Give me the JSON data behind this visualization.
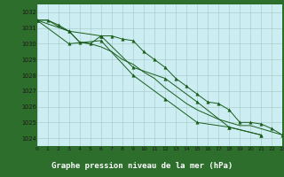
{
  "title": "Graphe pression niveau de la mer (hPa)",
  "bg_color": "#cceef2",
  "footer_color": "#2d6e2d",
  "footer_text_color": "#ffffff",
  "line_color": "#1a5c1a",
  "xlim": [
    0,
    23
  ],
  "ylim": [
    1023.5,
    1032.5
  ],
  "yticks": [
    1024,
    1025,
    1026,
    1027,
    1028,
    1029,
    1030,
    1031,
    1032
  ],
  "xtick_labels": [
    "0",
    "1",
    "2",
    "3",
    "4",
    "5",
    "6",
    "7",
    "8",
    "9",
    "10",
    "11",
    "12",
    "13",
    "14",
    "15",
    "16",
    "17",
    "18",
    "19",
    "20",
    "21",
    "22",
    "23"
  ],
  "series": [
    {
      "x": [
        0,
        1,
        2,
        3,
        4,
        5,
        6,
        7,
        8,
        9,
        10,
        11,
        12,
        13,
        14,
        15,
        16,
        17,
        18,
        19,
        20,
        21,
        22,
        23
      ],
      "y": [
        1031.5,
        1031.5,
        1031.2,
        1030.8,
        1030.1,
        1030.0,
        1030.5,
        1030.5,
        1030.3,
        1030.2,
        1029.5,
        1029.0,
        1028.5,
        1027.8,
        1027.3,
        1026.8,
        1026.3,
        1026.2,
        1025.8,
        1025.0,
        1025.0,
        1024.9,
        1024.6,
        1024.2
      ],
      "marker": true
    },
    {
      "x": [
        0,
        1,
        2,
        3,
        4,
        5,
        6,
        7,
        8,
        9,
        10,
        11,
        12,
        13,
        14,
        15,
        16,
        17,
        18,
        19,
        20,
        21,
        22,
        23
      ],
      "y": [
        1031.5,
        1031.5,
        1031.1,
        1030.8,
        1030.1,
        1030.0,
        1029.8,
        1029.5,
        1029.0,
        1028.7,
        1028.2,
        1027.8,
        1027.2,
        1026.7,
        1026.2,
        1025.8,
        1025.5,
        1025.2,
        1025.0,
        1024.8,
        1024.8,
        1024.6,
        1024.4,
        1024.2
      ],
      "marker": false
    },
    {
      "x": [
        0,
        3,
        6,
        9,
        12,
        15,
        18,
        21
      ],
      "y": [
        1031.5,
        1030.8,
        1030.5,
        1028.5,
        1027.8,
        1026.3,
        1024.7,
        1024.2
      ],
      "marker": true
    },
    {
      "x": [
        0,
        3,
        6,
        9,
        12,
        15,
        18,
        21
      ],
      "y": [
        1031.5,
        1030.0,
        1030.2,
        1028.0,
        1026.5,
        1025.0,
        1024.7,
        1024.2
      ],
      "marker": true
    }
  ]
}
